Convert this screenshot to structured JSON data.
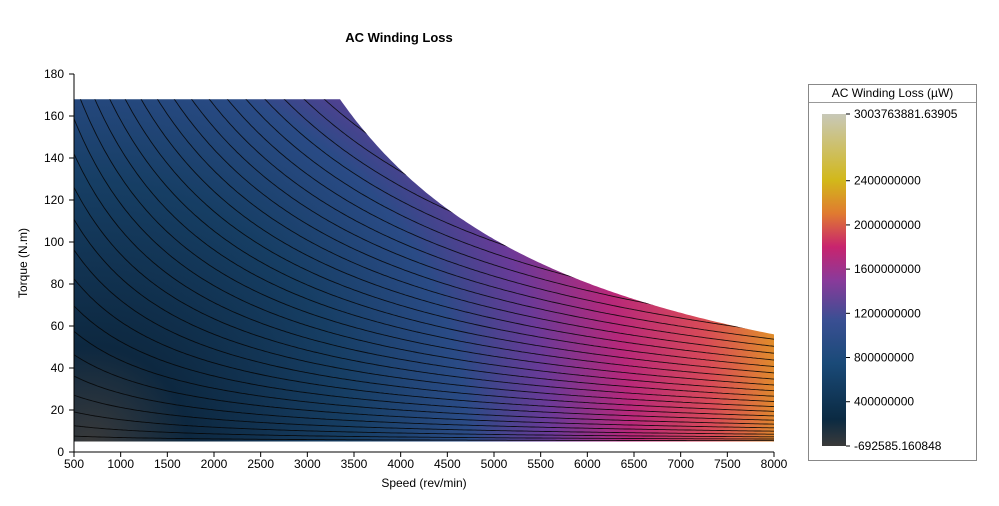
{
  "chart_data": {
    "type": "heatmap",
    "title": "AC Winding Loss",
    "xlabel": "Speed (rev/min)",
    "ylabel": "Torque (N.m)",
    "xlim": [
      500,
      8000
    ],
    "ylim": [
      0,
      180
    ],
    "x_ticks": [
      "500",
      "1000",
      "1500",
      "2000",
      "2500",
      "3000",
      "3500",
      "4000",
      "4500",
      "5000",
      "5500",
      "6000",
      "6500",
      "7000",
      "7500",
      "8000"
    ],
    "y_ticks": [
      "0",
      "20",
      "40",
      "60",
      "80",
      "100",
      "120",
      "140",
      "160",
      "180"
    ],
    "data_region": {
      "torque_min": 5,
      "torque_max": 168,
      "base_speed": 3350,
      "torque_at_max_speed": 56
    },
    "colorbar": {
      "title": "AC Winding Loss (µW)",
      "min": -692585.160848,
      "max": 3003763881.63905,
      "min_label": "-692585.160848",
      "max_label": "3003763881.63905",
      "ticks": [
        {
          "value": 400000000,
          "label": "400000000"
        },
        {
          "value": 800000000,
          "label": "800000000"
        },
        {
          "value": 1200000000,
          "label": "1200000000"
        },
        {
          "value": 1600000000,
          "label": "1600000000"
        },
        {
          "value": 2000000000,
          "label": "2000000000"
        },
        {
          "value": 2400000000,
          "label": "2400000000"
        }
      ],
      "colors": [
        "#3a3a3a",
        "#0b2a42",
        "#1a4a78",
        "#3a4f93",
        "#8a3a9a",
        "#c8246e",
        "#e07a30",
        "#d2b81a",
        "#c8c8b8"
      ]
    },
    "grid": false,
    "legend_position": "right"
  }
}
